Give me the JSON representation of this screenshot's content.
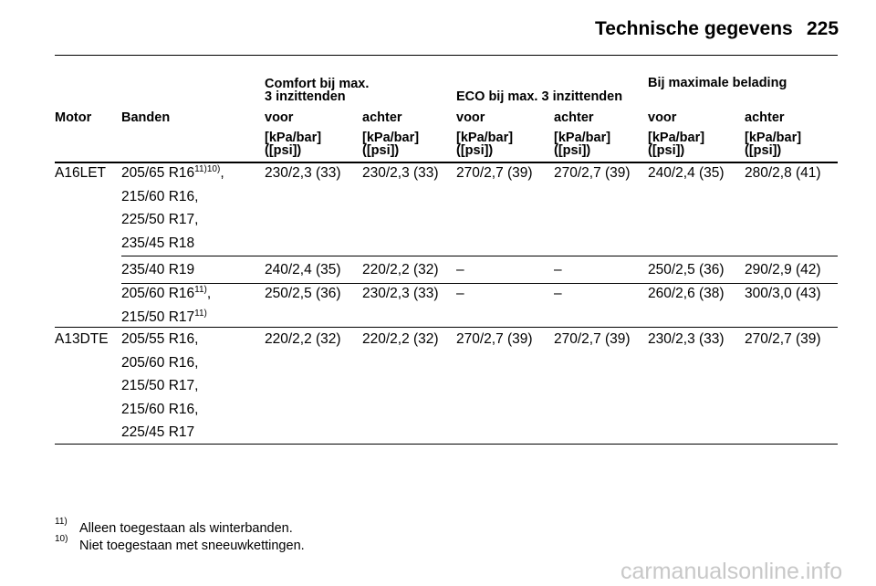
{
  "header": {
    "title": "Technische gegevens",
    "page": "225"
  },
  "table": {
    "group_headers": [
      [
        "Comfort bij max.",
        "3 inzittenden"
      ],
      [
        "ECO bij max. 3 inzittenden"
      ],
      [
        "Bij maximale belading"
      ]
    ],
    "columns": [
      "Motor",
      "Banden",
      "voor",
      "achter",
      "voor",
      "achter",
      "voor",
      "achter"
    ],
    "units": [
      [
        "[kPa/bar]",
        "([psi])"
      ],
      [
        "[kPa/bar]",
        "([psi])"
      ],
      [
        "[kPa/bar]",
        "([psi])"
      ],
      [
        "[kPa/bar]",
        "([psi])"
      ],
      [
        "[kPa/bar]",
        "([psi])"
      ],
      [
        "[kPa/bar]",
        "([psi])"
      ]
    ],
    "rows": [
      {
        "motor": "A16LET",
        "tires": [
          {
            "text": "205/65 R16",
            "note": "11)10)",
            "after": ","
          },
          {
            "text": "215/60 R16,"
          },
          {
            "text": "225/50 R17,"
          },
          {
            "text": "235/45 R18"
          }
        ],
        "values": [
          "230/2,3 (33)",
          "230/2,3 (33)",
          "270/2,7 (39)",
          "270/2,7 (39)",
          "240/2,4 (35)",
          "280/2,8 (41)"
        ]
      },
      {
        "tires": [
          {
            "text": "235/40 R19"
          }
        ],
        "values": [
          "240/2,4 (35)",
          "220/2,2 (32)",
          "–",
          "–",
          "250/2,5 (36)",
          "290/2,9 (42)"
        ]
      },
      {
        "tires": [
          {
            "text": "205/60 R16",
            "note": "11)",
            "after": ","
          },
          {
            "text": "215/50 R17",
            "note": "11)"
          }
        ],
        "values": [
          "250/2,5 (36)",
          "230/2,3 (33)",
          "–",
          "–",
          "260/2,6 (38)",
          "300/3,0 (43)"
        ]
      },
      {
        "motor": "A13DTE",
        "tires": [
          {
            "text": "205/55 R16,"
          },
          {
            "text": "205/60 R16,"
          },
          {
            "text": "215/50 R17,"
          },
          {
            "text": "215/60 R16,"
          },
          {
            "text": "225/45 R17"
          }
        ],
        "values": [
          "220/2,2 (32)",
          "220/2,2 (32)",
          "270/2,7 (39)",
          "270/2,7 (39)",
          "230/2,3 (33)",
          "270/2,7 (39)"
        ]
      }
    ]
  },
  "footnotes": [
    {
      "mark": "11)",
      "text": "Alleen toegestaan als winterbanden."
    },
    {
      "mark": "10)",
      "text": "Niet toegestaan met sneeuwkettingen."
    }
  ],
  "watermark": "carmanualsonline.info"
}
